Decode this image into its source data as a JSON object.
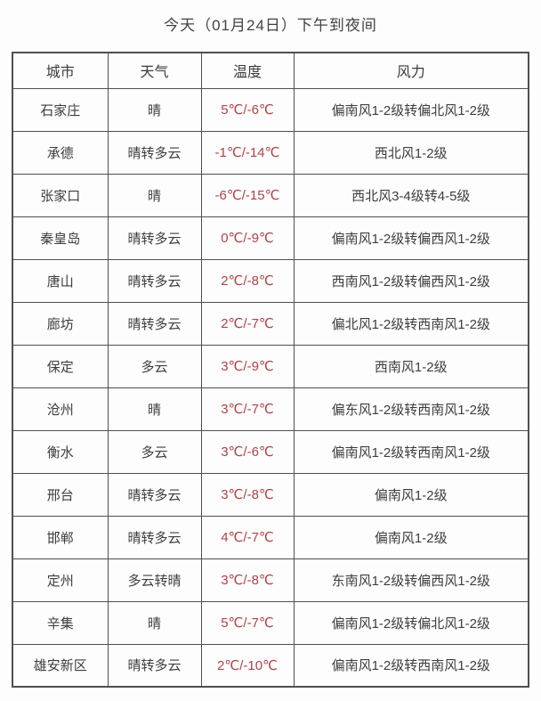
{
  "title": "今天（01月24日）下午到夜间",
  "table": {
    "headers": [
      "城市",
      "天气",
      "温度",
      "风力"
    ],
    "rows": [
      {
        "city": "石家庄",
        "weather": "晴",
        "temp": "5℃/-6℃",
        "wind": "偏南风1-2级转偏北风1-2级"
      },
      {
        "city": "承德",
        "weather": "晴转多云",
        "temp": "-1℃/-14℃",
        "wind": "西北风1-2级"
      },
      {
        "city": "张家口",
        "weather": "晴",
        "temp": "-6℃/-15℃",
        "wind": "西北风3-4级转4-5级"
      },
      {
        "city": "秦皇岛",
        "weather": "晴转多云",
        "temp": "0℃/-9℃",
        "wind": "偏南风1-2级转偏西风1-2级"
      },
      {
        "city": "唐山",
        "weather": "晴转多云",
        "temp": "2℃/-8℃",
        "wind": "西南风1-2级转偏西风1-2级"
      },
      {
        "city": "廊坊",
        "weather": "晴转多云",
        "temp": "2℃/-7℃",
        "wind": "偏北风1-2级转西南风1-2级"
      },
      {
        "city": "保定",
        "weather": "多云",
        "temp": "3℃/-9℃",
        "wind": "西南风1-2级"
      },
      {
        "city": "沧州",
        "weather": "晴",
        "temp": "3℃/-7℃",
        "wind": "偏东风1-2级转西南风1-2级"
      },
      {
        "city": "衡水",
        "weather": "多云",
        "temp": "3℃/-6℃",
        "wind": "偏南风1-2级转西南风1-2级"
      },
      {
        "city": "邢台",
        "weather": "晴转多云",
        "temp": "3℃/-8℃",
        "wind": "偏南风1-2级"
      },
      {
        "city": "邯郸",
        "weather": "晴转多云",
        "temp": "4℃/-7℃",
        "wind": "偏南风1-2级"
      },
      {
        "city": "定州",
        "weather": "多云转晴",
        "temp": "3℃/-8℃",
        "wind": "东南风1-2级转偏西风1-2级"
      },
      {
        "city": "辛集",
        "weather": "晴",
        "temp": "5℃/-7℃",
        "wind": "偏南风1-2级转偏北风1-2级"
      },
      {
        "city": "雄安新区",
        "weather": "晴转多云",
        "temp": "2℃/-10℃",
        "wind": "偏南风1-2级转西南风1-2级"
      }
    ]
  },
  "colors": {
    "temperature_text": "#b04245",
    "body_text": "#3d3d3d",
    "border": "#4f4f4f",
    "background": "#fdfdfd"
  }
}
